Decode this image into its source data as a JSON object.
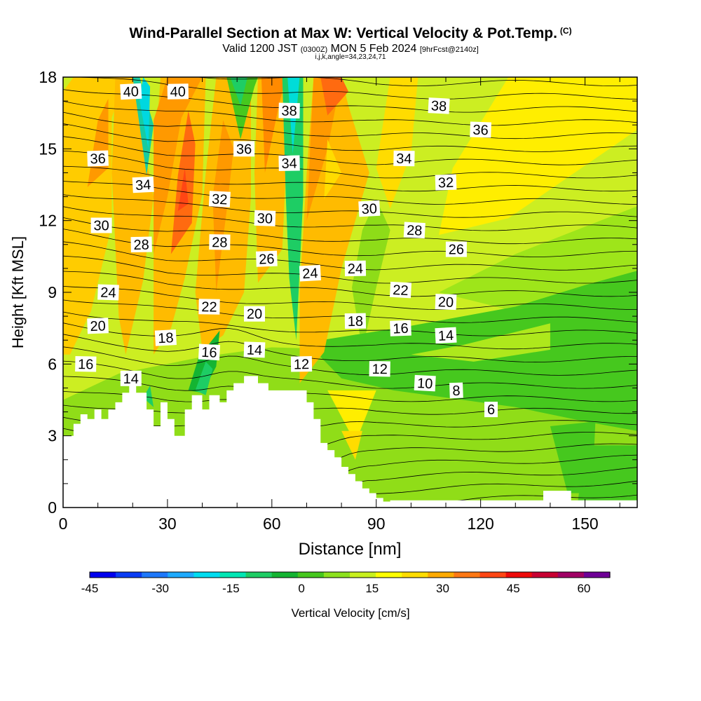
{
  "title": "Wind-Parallel Section at Max W: Vertical Velocity & Pot.Temp.",
  "title_mark": "(C)",
  "subtitle": {
    "valid": "Valid 1200 JST",
    "utc": "(0300Z)",
    "date": "MON 5 Feb 2024",
    "fcst": "[9hrFcst@2140z]"
  },
  "subsubtitle": "i,j,k,angle=34,23,24,71",
  "chart_data": {
    "type": "heatmap",
    "xlabel": "Distance [nm]",
    "ylabel": "Height [Kft MSL]",
    "xlim": [
      0,
      165
    ],
    "ylim": [
      0,
      18
    ],
    "x_ticks": [
      "0",
      "30",
      "60",
      "90",
      "120",
      "150"
    ],
    "y_ticks": [
      "0",
      "3",
      "6",
      "9",
      "12",
      "15",
      "18"
    ],
    "grid": false,
    "colorbar": {
      "label": "Vertical Velocity [cm/s]",
      "tick_labels": [
        "-45",
        "-30",
        "-15",
        "0",
        "15",
        "30",
        "45",
        "60"
      ],
      "colors": [
        "#0000ee",
        "#0a3cf4",
        "#1e78fa",
        "#1eaaff",
        "#00dcf0",
        "#00e6b4",
        "#1ecd64",
        "#14b432",
        "#46c81e",
        "#8ce11e",
        "#c8f01e",
        "#ffff00",
        "#ffdc00",
        "#ffaa00",
        "#ff7814",
        "#ff4614",
        "#ee0a0a",
        "#c80032",
        "#a00064",
        "#6e0096"
      ]
    },
    "contour_labels": [
      {
        "text": "40",
        "x": 19.5,
        "y": 17.4
      },
      {
        "text": "40",
        "x": 33,
        "y": 17.4
      },
      {
        "text": "38",
        "x": 65,
        "y": 16.6
      },
      {
        "text": "38",
        "x": 108,
        "y": 16.8
      },
      {
        "text": "36",
        "x": 10,
        "y": 14.6
      },
      {
        "text": "36",
        "x": 52,
        "y": 15.0
      },
      {
        "text": "36",
        "x": 120,
        "y": 15.8
      },
      {
        "text": "34",
        "x": 23,
        "y": 13.5
      },
      {
        "text": "34",
        "x": 65,
        "y": 14.4
      },
      {
        "text": "34",
        "x": 98,
        "y": 14.6
      },
      {
        "text": "32",
        "x": 45,
        "y": 12.9
      },
      {
        "text": "32",
        "x": 110,
        "y": 13.6
      },
      {
        "text": "30",
        "x": 11,
        "y": 11.8
      },
      {
        "text": "30",
        "x": 58,
        "y": 12.1
      },
      {
        "text": "30",
        "x": 88,
        "y": 12.5
      },
      {
        "text": "28",
        "x": 22.5,
        "y": 11.0
      },
      {
        "text": "28",
        "x": 45,
        "y": 11.1
      },
      {
        "text": "28",
        "x": 101,
        "y": 11.6
      },
      {
        "text": "26",
        "x": 58.5,
        "y": 10.4
      },
      {
        "text": "26",
        "x": 113,
        "y": 10.8
      },
      {
        "text": "24",
        "x": 13,
        "y": 9.0
      },
      {
        "text": "24",
        "x": 71,
        "y": 9.8
      },
      {
        "text": "24",
        "x": 84,
        "y": 10.0
      },
      {
        "text": "22",
        "x": 42,
        "y": 8.4
      },
      {
        "text": "22",
        "x": 97,
        "y": 9.1
      },
      {
        "text": "20",
        "x": 10,
        "y": 7.6
      },
      {
        "text": "20",
        "x": 55,
        "y": 8.1
      },
      {
        "text": "20",
        "x": 110,
        "y": 8.6
      },
      {
        "text": "18",
        "x": 29.5,
        "y": 7.1
      },
      {
        "text": "18",
        "x": 84,
        "y": 7.8
      },
      {
        "text": "16",
        "x": 6.5,
        "y": 6.0
      },
      {
        "text": "16",
        "x": 42,
        "y": 6.5
      },
      {
        "text": "16",
        "x": 97,
        "y": 7.5
      },
      {
        "text": "14",
        "x": 19.5,
        "y": 5.4
      },
      {
        "text": "14",
        "x": 55,
        "y": 6.6
      },
      {
        "text": "14",
        "x": 110,
        "y": 7.2
      },
      {
        "text": "12",
        "x": 68.5,
        "y": 6.0
      },
      {
        "text": "12",
        "x": 91,
        "y": 5.8
      },
      {
        "text": "10",
        "x": 104,
        "y": 5.2
      },
      {
        "text": "8",
        "x": 113,
        "y": 4.9
      },
      {
        "text": "6",
        "x": 123,
        "y": 4.1
      }
    ]
  }
}
